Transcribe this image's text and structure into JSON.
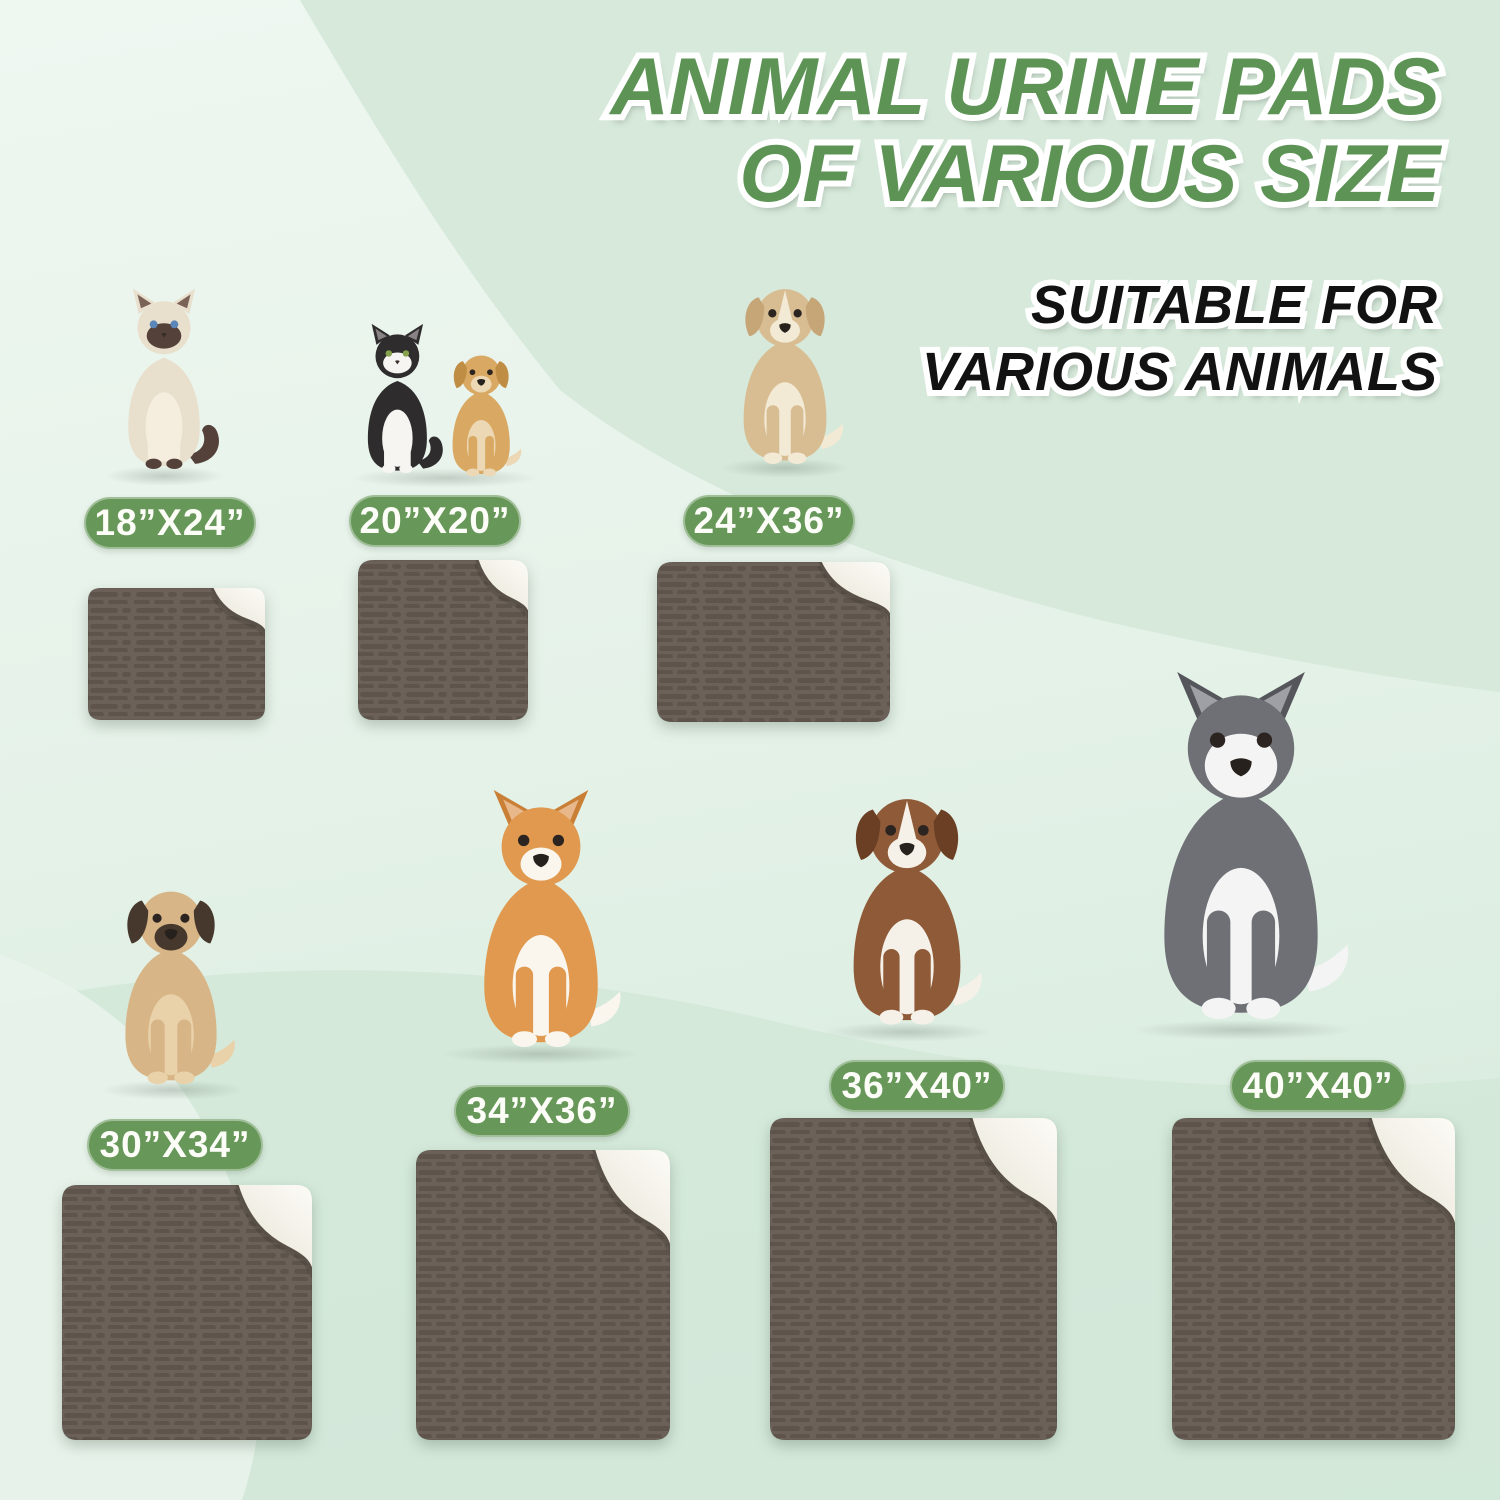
{
  "page": {
    "title_line1": "ANIMAL URINE PADS",
    "title_line2": "OF VARIOUS SIZE",
    "subtitle_line1": "SUITABLE FOR",
    "subtitle_line2": "VARIOUS ANIMALS"
  },
  "colors": {
    "title_green": "#5d9456",
    "badge_green": "#67985a",
    "pad_brown": "#6b6158",
    "pad_fold_white": "#f1efe7",
    "background_light": "#ecf6ee",
    "background_dark_band": "#d6e9da"
  },
  "items": [
    {
      "animal_icon": "siamese-cat-photo",
      "size_label": "18”X24”"
    },
    {
      "animal_icon": "tuxedo-cat-and-lab-puppy-photo",
      "size_label": "20”X20”"
    },
    {
      "animal_icon": "tan-mixed-breed-dog-photo",
      "size_label": "24”X36”"
    },
    {
      "animal_icon": "pug-dog-photo",
      "size_label": "30”X34”"
    },
    {
      "animal_icon": "corgi-dog-photo",
      "size_label": "34”X36”"
    },
    {
      "animal_icon": "australian-shepherd-dog-photo",
      "size_label": "36”X40”"
    },
    {
      "animal_icon": "siberian-husky-dog-photo",
      "size_label": "40”X40”"
    }
  ]
}
